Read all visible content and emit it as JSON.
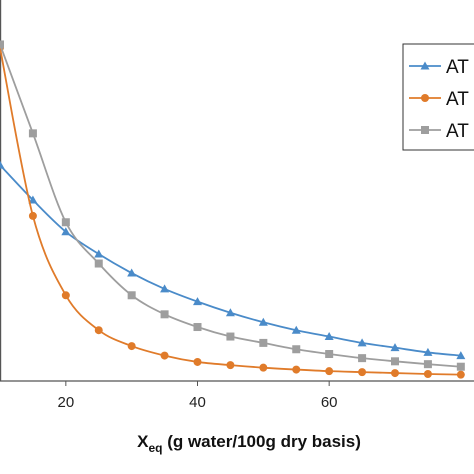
{
  "chart_data": {
    "type": "line",
    "xlabel": "X",
    "xlabel_sub": "eq",
    "xlabel_rest": " (g water/100g dry basis)",
    "ylabel": "",
    "xlim": [
      10,
      82
    ],
    "ylim": [
      0,
      120
    ],
    "x_ticks": [
      "20",
      "40",
      "60"
    ],
    "legend_position": "top-right",
    "series": [
      {
        "name": "AT",
        "color": "#4a8bc9",
        "marker": "triangle",
        "points": [
          [
            10,
            68
          ],
          [
            15,
            57
          ],
          [
            20,
            47
          ],
          [
            25,
            40
          ],
          [
            30,
            34
          ],
          [
            35,
            29
          ],
          [
            40,
            25
          ],
          [
            45,
            21.5
          ],
          [
            50,
            18.5
          ],
          [
            55,
            16
          ],
          [
            60,
            14
          ],
          [
            65,
            12
          ],
          [
            70,
            10.5
          ],
          [
            75,
            9
          ],
          [
            80,
            8
          ]
        ]
      },
      {
        "name": "AT",
        "color": "#e07b2a",
        "marker": "circle",
        "points": [
          [
            10,
            105
          ],
          [
            15,
            52
          ],
          [
            20,
            27
          ],
          [
            25,
            16
          ],
          [
            30,
            11
          ],
          [
            35,
            8
          ],
          [
            40,
            6
          ],
          [
            45,
            5
          ],
          [
            50,
            4.2
          ],
          [
            55,
            3.6
          ],
          [
            60,
            3.1
          ],
          [
            65,
            2.8
          ],
          [
            70,
            2.5
          ],
          [
            75,
            2.2
          ],
          [
            80,
            2
          ]
        ]
      },
      {
        "name": "AT",
        "color": "#9e9e9e",
        "marker": "square",
        "points": [
          [
            10,
            106
          ],
          [
            15,
            78
          ],
          [
            20,
            50
          ],
          [
            25,
            37
          ],
          [
            30,
            27
          ],
          [
            35,
            21
          ],
          [
            40,
            17
          ],
          [
            45,
            14
          ],
          [
            50,
            12
          ],
          [
            55,
            10
          ],
          [
            60,
            8.5
          ],
          [
            65,
            7.2
          ],
          [
            70,
            6.2
          ],
          [
            75,
            5.3
          ],
          [
            80,
            4.5
          ]
        ]
      }
    ]
  }
}
